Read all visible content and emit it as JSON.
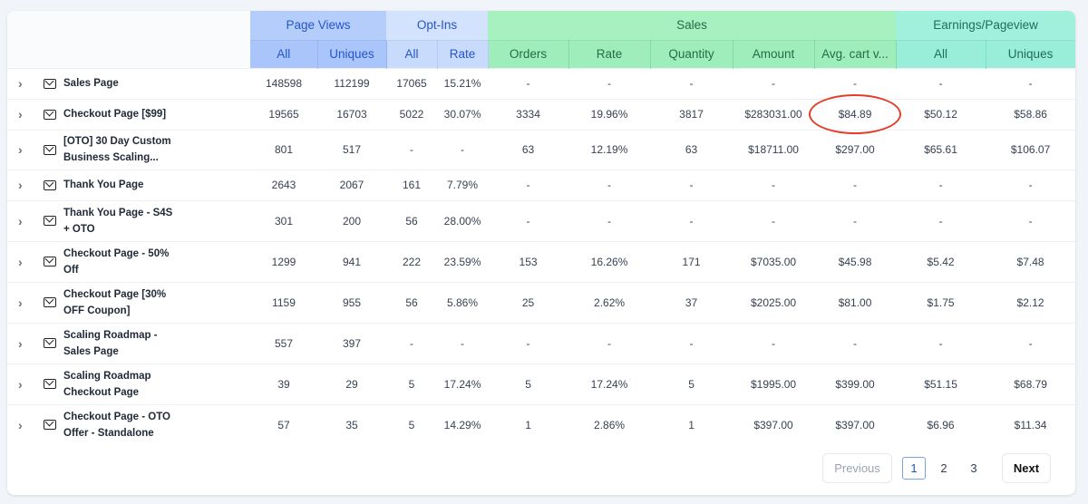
{
  "header": {
    "groups": [
      {
        "label": "Page Views"
      },
      {
        "label": "Opt-Ins"
      },
      {
        "label": "Sales"
      },
      {
        "label": "Earnings/Pageview"
      }
    ],
    "columns": [
      "All",
      "Uniques",
      "All",
      "Rate",
      "Orders",
      "Rate",
      "Quantity",
      "Amount",
      "Avg. cart v...",
      "All",
      "Uniques"
    ]
  },
  "rows": [
    {
      "name": "Sales Page",
      "icon": "mail-icon",
      "cells": [
        "148598",
        "112199",
        "17065",
        "15.21%",
        "-",
        "-",
        "-",
        "-",
        "-",
        "-",
        "-"
      ]
    },
    {
      "name": "Checkout Page [$99]",
      "icon": "mail-icon",
      "cells": [
        "19565",
        "16703",
        "5022",
        "30.07%",
        "3334",
        "19.96%",
        "3817",
        "$283031.00",
        "$84.89",
        "$50.12",
        "$58.86"
      ]
    },
    {
      "name": "[OTO] 30 Day Custom Business Scaling...",
      "icon": "mail-icon",
      "cells": [
        "801",
        "517",
        "-",
        "-",
        "63",
        "12.19%",
        "63",
        "$18711.00",
        "$297.00",
        "$65.61",
        "$106.07"
      ]
    },
    {
      "name": "Thank You Page",
      "icon": "mail-icon",
      "cells": [
        "2643",
        "2067",
        "161",
        "7.79%",
        "-",
        "-",
        "-",
        "-",
        "-",
        "-",
        "-"
      ]
    },
    {
      "name": "Thank You Page - S4S + OTO",
      "icon": "mail-icon",
      "cells": [
        "301",
        "200",
        "56",
        "28.00%",
        "-",
        "-",
        "-",
        "-",
        "-",
        "-",
        "-"
      ]
    },
    {
      "name": "Checkout Page - 50% Off",
      "icon": "mail-icon",
      "cells": [
        "1299",
        "941",
        "222",
        "23.59%",
        "153",
        "16.26%",
        "171",
        "$7035.00",
        "$45.98",
        "$5.42",
        "$7.48"
      ]
    },
    {
      "name": "Checkout Page [30% OFF Coupon]",
      "icon": "mail-icon",
      "cells": [
        "1159",
        "955",
        "56",
        "5.86%",
        "25",
        "2.62%",
        "37",
        "$2025.00",
        "$81.00",
        "$1.75",
        "$2.12"
      ]
    },
    {
      "name": "Scaling Roadmap - Sales Page",
      "icon": "mail-icon",
      "cells": [
        "557",
        "397",
        "-",
        "-",
        "-",
        "-",
        "-",
        "-",
        "-",
        "-",
        "-"
      ]
    },
    {
      "name": "Scaling Roadmap Checkout Page",
      "icon": "mail-icon",
      "cells": [
        "39",
        "29",
        "5",
        "17.24%",
        "5",
        "17.24%",
        "5",
        "$1995.00",
        "$399.00",
        "$51.15",
        "$68.79"
      ]
    },
    {
      "name": "Checkout Page - OTO Offer - Standalone",
      "icon": "mail-icon",
      "cells": [
        "57",
        "35",
        "5",
        "14.29%",
        "1",
        "2.86%",
        "1",
        "$397.00",
        "$397.00",
        "$6.96",
        "$11.34"
      ]
    }
  ],
  "pagination": {
    "previous": "Previous",
    "pages": [
      "1",
      "2",
      "3"
    ],
    "current": "1",
    "next": "Next"
  },
  "annotation_color": "#e43d2b"
}
